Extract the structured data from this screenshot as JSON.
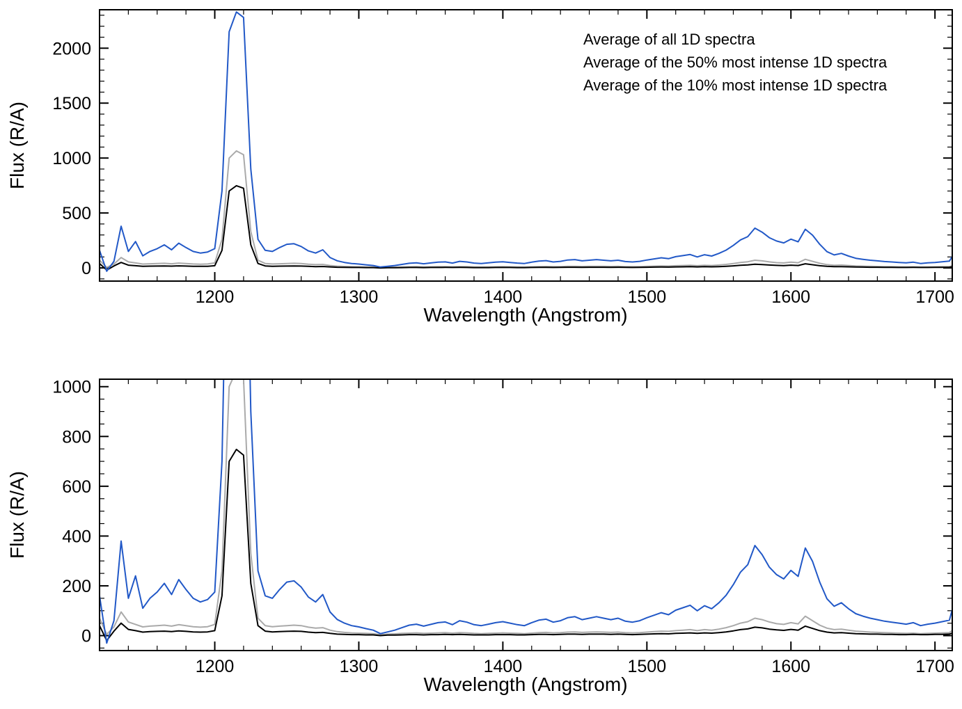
{
  "figure": {
    "background": "#ffffff",
    "description": "Two stacked panels of averaged 1D UV spectra, flux vs wavelength; bottom panel is a zoomed-in (lower flux range) view of the same data."
  },
  "chart_data": [
    {
      "type": "line",
      "panel": "top",
      "title": "",
      "xlabel": "Wavelength (Angstrom)",
      "ylabel": "Flux (R/A)",
      "xlim": [
        1120,
        1712
      ],
      "ylim": [
        -120,
        2350
      ],
      "xticks": [
        1200,
        1300,
        1400,
        1500,
        1600,
        1700
      ],
      "yticks": [
        0,
        500,
        1000,
        1500,
        2000
      ],
      "xtick_minor": 20,
      "ytick_minor": 100,
      "grid": false,
      "legend_position": "upper right",
      "x": [
        1120,
        1125,
        1130,
        1135,
        1140,
        1145,
        1150,
        1155,
        1160,
        1165,
        1170,
        1175,
        1180,
        1185,
        1190,
        1195,
        1200,
        1205,
        1210,
        1215,
        1220,
        1225,
        1230,
        1235,
        1240,
        1245,
        1250,
        1255,
        1260,
        1265,
        1270,
        1275,
        1280,
        1285,
        1290,
        1295,
        1300,
        1305,
        1310,
        1315,
        1320,
        1325,
        1330,
        1335,
        1340,
        1345,
        1350,
        1355,
        1360,
        1365,
        1370,
        1375,
        1380,
        1385,
        1390,
        1395,
        1400,
        1405,
        1410,
        1415,
        1420,
        1425,
        1430,
        1435,
        1440,
        1445,
        1450,
        1455,
        1460,
        1465,
        1470,
        1475,
        1480,
        1485,
        1490,
        1495,
        1500,
        1505,
        1510,
        1515,
        1520,
        1525,
        1530,
        1535,
        1540,
        1545,
        1550,
        1555,
        1560,
        1565,
        1570,
        1575,
        1580,
        1585,
        1590,
        1595,
        1600,
        1605,
        1610,
        1615,
        1620,
        1625,
        1630,
        1635,
        1640,
        1645,
        1650,
        1655,
        1660,
        1665,
        1670,
        1675,
        1680,
        1685,
        1690,
        1695,
        1700,
        1705,
        1710,
        1715
      ],
      "series": [
        {
          "name": "Average of all 1D spectra",
          "color": "#000000",
          "values": [
            40,
            -20,
            18,
            50,
            25,
            20,
            14,
            16,
            17,
            18,
            16,
            19,
            17,
            15,
            14,
            15,
            20,
            160,
            700,
            748,
            725,
            210,
            40,
            18,
            15,
            16,
            17,
            18,
            17,
            14,
            12,
            13,
            9,
            6,
            5,
            4,
            4,
            3,
            3,
            0,
            2,
            2,
            3,
            4,
            4,
            3,
            4,
            4,
            5,
            4,
            5,
            4,
            3,
            3,
            3,
            4,
            4,
            4,
            3,
            3,
            4,
            5,
            5,
            4,
            5,
            6,
            6,
            5,
            6,
            6,
            6,
            5,
            6,
            5,
            4,
            5,
            6,
            7,
            8,
            7,
            9,
            10,
            11,
            9,
            11,
            10,
            12,
            15,
            19,
            24,
            27,
            34,
            31,
            26,
            23,
            21,
            25,
            22,
            38,
            29,
            20,
            14,
            11,
            12,
            10,
            8,
            7,
            6,
            6,
            5,
            5,
            4,
            4,
            5,
            4,
            4,
            5,
            5,
            6,
            16
          ]
        },
        {
          "name": "Average of the 50% most intense 1D spectra",
          "color": "#aaaaaa",
          "values": [
            70,
            5,
            35,
            95,
            55,
            45,
            35,
            38,
            40,
            42,
            38,
            44,
            40,
            36,
            34,
            36,
            45,
            260,
            1000,
            1065,
            1030,
            330,
            70,
            40,
            36,
            38,
            40,
            42,
            40,
            34,
            30,
            32,
            22,
            16,
            13,
            11,
            10,
            9,
            8,
            4,
            6,
            7,
            9,
            10,
            11,
            9,
            10,
            11,
            12,
            10,
            12,
            11,
            9,
            8,
            9,
            10,
            11,
            10,
            9,
            8,
            10,
            12,
            13,
            11,
            12,
            14,
            15,
            13,
            14,
            15,
            14,
            13,
            14,
            12,
            11,
            12,
            14,
            16,
            18,
            17,
            20,
            22,
            24,
            20,
            24,
            22,
            26,
            32,
            40,
            50,
            56,
            70,
            64,
            55,
            48,
            45,
            52,
            47,
            78,
            60,
            42,
            30,
            24,
            26,
            22,
            18,
            16,
            14,
            13,
            12,
            11,
            10,
            9,
            10,
            8,
            9,
            10,
            11,
            12,
            34
          ]
        },
        {
          "name": "Average of the 10% most intense 1D spectra",
          "color": "#2158c7",
          "values": [
            160,
            -30,
            60,
            380,
            150,
            240,
            110,
            150,
            175,
            210,
            165,
            225,
            185,
            150,
            135,
            145,
            175,
            700,
            2150,
            2330,
            2280,
            900,
            260,
            160,
            150,
            185,
            215,
            220,
            195,
            155,
            135,
            165,
            95,
            65,
            50,
            40,
            35,
            28,
            22,
            8,
            15,
            22,
            32,
            42,
            46,
            38,
            45,
            52,
            55,
            44,
            60,
            54,
            44,
            40,
            46,
            52,
            56,
            50,
            44,
            40,
            52,
            62,
            66,
            54,
            60,
            72,
            76,
            64,
            70,
            76,
            70,
            64,
            70,
            58,
            54,
            60,
            72,
            82,
            92,
            84,
            102,
            112,
            122,
            100,
            120,
            108,
            132,
            162,
            205,
            255,
            285,
            362,
            325,
            275,
            245,
            228,
            262,
            238,
            352,
            298,
            215,
            148,
            118,
            132,
            108,
            88,
            78,
            70,
            64,
            58,
            54,
            50,
            46,
            52,
            40,
            46,
            50,
            56,
            62,
            168
          ]
        }
      ]
    },
    {
      "type": "line",
      "panel": "bottom",
      "title": "",
      "xlabel": "Wavelength (Angstrom)",
      "ylabel": "Flux (R/A)",
      "xlim": [
        1120,
        1712
      ],
      "ylim": [
        -60,
        1030
      ],
      "xticks": [
        1200,
        1300,
        1400,
        1500,
        1600,
        1700
      ],
      "yticks": [
        0,
        200,
        400,
        600,
        800,
        1000
      ],
      "xtick_minor": 20,
      "ytick_minor": 50,
      "grid": false,
      "series_ref": 0
    }
  ]
}
